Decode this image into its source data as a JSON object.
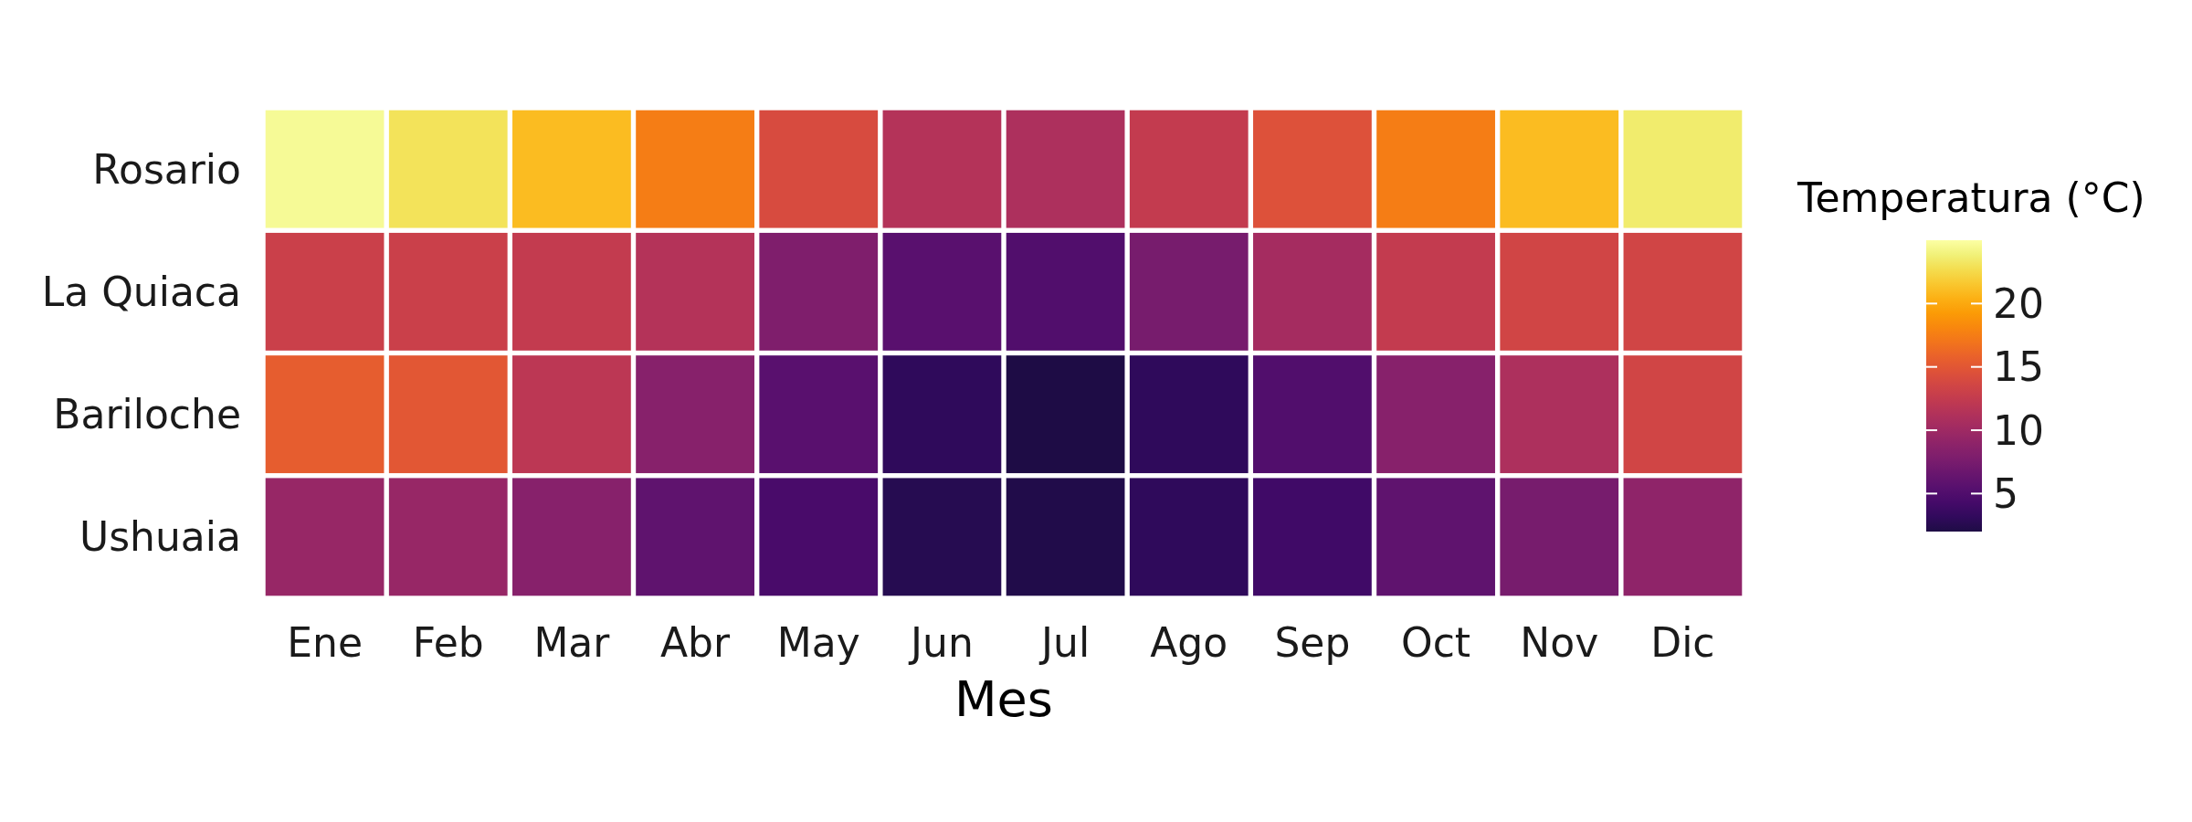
{
  "chart_data": {
    "type": "heatmap",
    "xlabel": "Mes",
    "clabel": "Temperatura (°C)",
    "categories": [
      "Ene",
      "Feb",
      "Mar",
      "Abr",
      "May",
      "Jun",
      "Jul",
      "Ago",
      "Sep",
      "Oct",
      "Nov",
      "Dic"
    ],
    "y_categories": [
      "Rosario",
      "La Quiaca",
      "Bariloche",
      "Ushuaia"
    ],
    "cells": [
      [
        24.5,
        23,
        21,
        17.5,
        14,
        11.5,
        11,
        12.5,
        14.5,
        17.5,
        21,
        23.5
      ],
      [
        13,
        13,
        12.5,
        11.5,
        8,
        5.5,
        5,
        7.5,
        10.5,
        12.5,
        13.5,
        13.5
      ],
      [
        15.5,
        15,
        12,
        8.5,
        5.5,
        3,
        2,
        3,
        5,
        8.5,
        11,
        13.5
      ],
      [
        9.5,
        9.5,
        8.5,
        6,
        4.5,
        2.5,
        2.2,
        3,
        4,
        6,
        7.5,
        9
      ]
    ],
    "clim": [
      2,
      25
    ],
    "cticks": [
      5,
      10,
      15,
      20
    ]
  }
}
